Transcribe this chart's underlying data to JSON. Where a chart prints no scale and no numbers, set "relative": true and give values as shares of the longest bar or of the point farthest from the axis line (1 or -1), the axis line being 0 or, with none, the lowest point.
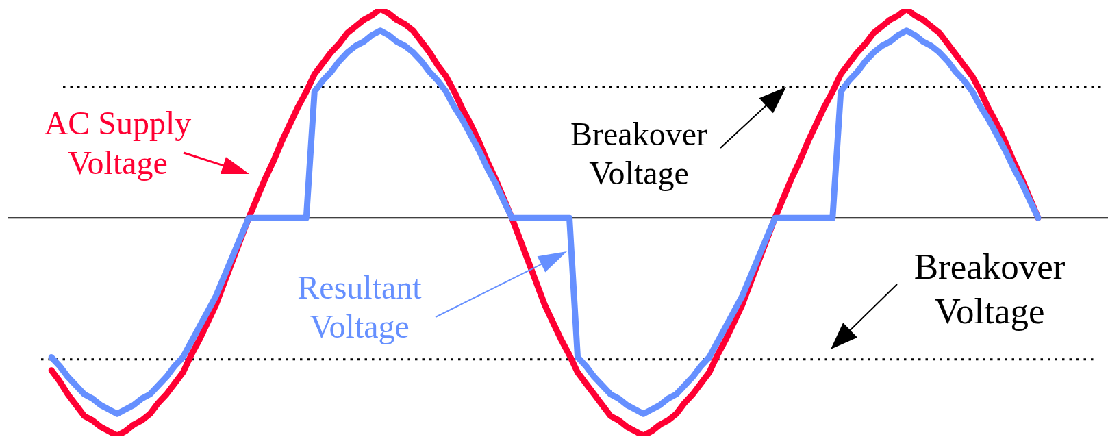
{
  "chart_data": {
    "type": "line",
    "relative": true,
    "tick_labels": false,
    "marker": "none",
    "legend": "left",
    "categories": [
      null,
      null,
      null,
      null,
      null,
      null,
      null,
      null,
      null,
      null,
      null,
      null,
      null,
      null,
      null,
      null,
      null,
      null,
      null,
      null,
      null,
      null,
      null,
      null,
      null,
      null,
      null,
      null,
      null,
      null,
      null,
      null,
      null,
      null,
      null,
      null,
      null,
      null,
      null,
      null,
      null,
      null,
      null,
      null,
      null,
      null,
      null,
      null,
      null,
      null,
      null,
      null,
      null,
      null,
      null,
      null,
      null,
      null,
      null,
      null,
      null,
      null,
      null,
      null,
      null,
      null,
      null,
      null,
      null,
      null,
      null,
      null,
      null,
      null,
      null,
      null,
      null,
      null,
      null,
      null,
      null,
      null,
      null,
      null,
      null,
      null,
      null,
      null,
      null,
      null,
      null,
      null,
      null,
      null,
      null,
      null,
      null,
      null,
      null,
      null,
      null,
      null,
      null,
      null,
      null,
      null,
      null,
      null,
      null,
      null,
      null,
      null,
      null,
      null,
      null,
      null,
      null,
      null,
      null,
      null,
      null
    ],
    "series": [
      {
        "name": "AC Supply Voltage",
        "color": "#ff0033",
        "values": [
          -0.7,
          -0.75,
          -0.81,
          -0.86,
          -0.91,
          -0.93,
          -0.96,
          -0.98,
          -1,
          -0.98,
          -0.95,
          -0.93,
          -0.9,
          -0.85,
          -0.81,
          -0.76,
          -0.71,
          -0.63,
          -0.56,
          -0.48,
          -0.4,
          -0.3,
          -0.2,
          -0.1,
          0,
          0.09,
          0.18,
          0.26,
          0.35,
          0.43,
          0.51,
          0.58,
          0.66,
          0.71,
          0.76,
          0.8,
          0.85,
          0.88,
          0.91,
          0.93,
          0.96,
          0.94,
          0.91,
          0.89,
          0.86,
          0.81,
          0.76,
          0.7,
          0.65,
          0.58,
          0.5,
          0.43,
          0.35,
          0.26,
          0.18,
          0.09,
          0,
          -0.1,
          -0.2,
          -0.3,
          -0.4,
          -0.48,
          -0.56,
          -0.63,
          -0.71,
          -0.76,
          -0.81,
          -0.86,
          -0.91,
          -0.93,
          -0.96,
          -0.98,
          -1,
          -0.98,
          -0.95,
          -0.93,
          -0.9,
          -0.85,
          -0.81,
          -0.76,
          -0.71,
          -0.63,
          -0.56,
          -0.48,
          -0.4,
          -0.3,
          -0.2,
          -0.1,
          0,
          0.09,
          0.18,
          0.26,
          0.35,
          0.43,
          0.51,
          0.58,
          0.66,
          0.71,
          0.76,
          0.8,
          0.85,
          0.88,
          0.91,
          0.93,
          0.96,
          0.93,
          0.91,
          0.88,
          0.85,
          0.8,
          0.75,
          0.7,
          0.65,
          0.58,
          0.5,
          0.43,
          0.35,
          0.26,
          0.18,
          0.09,
          0
        ]
      },
      {
        "name": "Resultant Voltage",
        "color": "#6690ff",
        "values": [
          -0.64,
          -0.68,
          -0.73,
          -0.77,
          -0.81,
          -0.83,
          -0.86,
          -0.88,
          -0.9,
          -0.88,
          -0.86,
          -0.83,
          -0.81,
          -0.77,
          -0.73,
          -0.68,
          -0.64,
          -0.57,
          -0.5,
          -0.43,
          -0.36,
          -0.27,
          -0.18,
          -0.09,
          0,
          0,
          0,
          0,
          0,
          0,
          0,
          0,
          0.58,
          0.63,
          0.67,
          0.72,
          0.76,
          0.79,
          0.81,
          0.84,
          0.86,
          0.84,
          0.81,
          0.79,
          0.76,
          0.72,
          0.67,
          0.63,
          0.58,
          0.51,
          0.45,
          0.38,
          0.31,
          0.23,
          0.16,
          0.08,
          0,
          0,
          0,
          0,
          0,
          0,
          0,
          0,
          -0.64,
          -0.68,
          -0.73,
          -0.77,
          -0.81,
          -0.83,
          -0.86,
          -0.88,
          -0.9,
          -0.88,
          -0.86,
          -0.83,
          -0.81,
          -0.77,
          -0.73,
          -0.68,
          -0.64,
          -0.57,
          -0.5,
          -0.43,
          -0.36,
          -0.27,
          -0.18,
          -0.09,
          0,
          0,
          0,
          0,
          0,
          0,
          0,
          0,
          0.58,
          0.63,
          0.67,
          0.72,
          0.76,
          0.79,
          0.81,
          0.84,
          0.86,
          0.84,
          0.81,
          0.79,
          0.76,
          0.72,
          0.67,
          0.63,
          0.58,
          0.51,
          0.45,
          0.38,
          0.31,
          0.23,
          0.16,
          0.08,
          0
        ]
      }
    ],
    "ref_lines": [
      {
        "axis": "y",
        "value": 0.6,
        "label": "Breakover Voltage",
        "color": "#000000",
        "line_style": "dotted"
      },
      {
        "axis": "y",
        "value": -0.65,
        "label": "Breakover Voltage",
        "color": "#000000",
        "line_style": "dotted"
      }
    ]
  }
}
